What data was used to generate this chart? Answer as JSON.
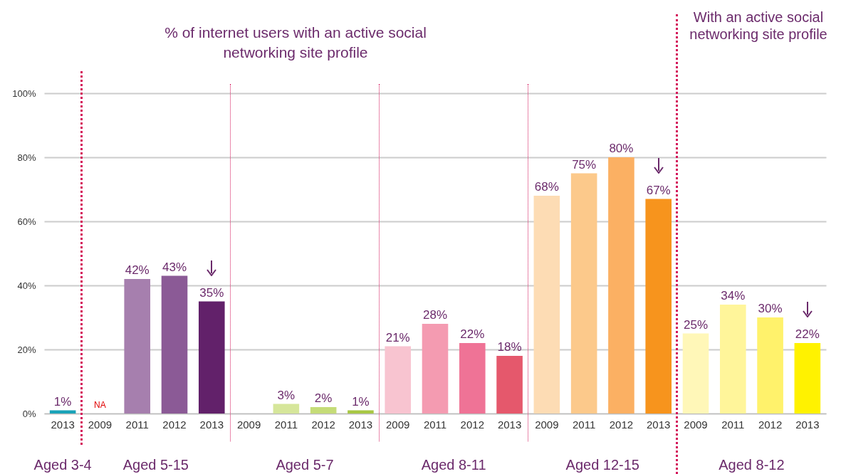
{
  "chart_data": {
    "type": "bar",
    "title": "% of internet users with an active social networking site profile",
    "categories": [
      "2013",
      "2009",
      "2011",
      "2012",
      "2013",
      "2009",
      "2011",
      "2012",
      "2013",
      "2009",
      "2011",
      "2012",
      "2013",
      "2009",
      "2011",
      "2012",
      "2013",
      "2009",
      "2011",
      "2012",
      "2013"
    ],
    "values": [
      1,
      null,
      42,
      43,
      35,
      null,
      3,
      2,
      1,
      21,
      28,
      22,
      18,
      68,
      75,
      80,
      67,
      25,
      34,
      30,
      22
    ],
    "value_labels": [
      "1%",
      "NA",
      "42%",
      "43%",
      "35%",
      null,
      "3%",
      "2%",
      "1%",
      "21%",
      "28%",
      "22%",
      "18%",
      "68%",
      "75%",
      "80%",
      "67%",
      "25%",
      "34%",
      "30%",
      "22%"
    ],
    "colors": [
      "#1aa3b8",
      "#a67fae",
      "#a67fae",
      "#8b5a96",
      "#62216a",
      "#d6e69a",
      "#d6e69a",
      "#c5dc78",
      "#a8c844",
      "#f8c4d0",
      "#f49bb1",
      "#ef7396",
      "#e5586c",
      "#fddcb4",
      "#fcc98b",
      "#fbb063",
      "#f7941d",
      "#fff7b8",
      "#fff59a",
      "#fff26b",
      "#fff200"
    ],
    "ylim": [
      0,
      100
    ],
    "yticks": [
      {
        "value": 0,
        "label": "0%"
      },
      {
        "value": 20,
        "label": "20%"
      },
      {
        "value": 40,
        "label": "40%"
      },
      {
        "value": 60,
        "label": "60%"
      },
      {
        "value": 80,
        "label": "80%"
      },
      {
        "value": 100,
        "label": "100%"
      }
    ],
    "grid": "y",
    "annotations": [
      "Aged 3-4",
      "Aged 5-15",
      "Aged 5-7",
      "Aged 8-11",
      "Aged 12-15",
      "Aged 8-12",
      "With an active social networking site profile"
    ]
  }
}
